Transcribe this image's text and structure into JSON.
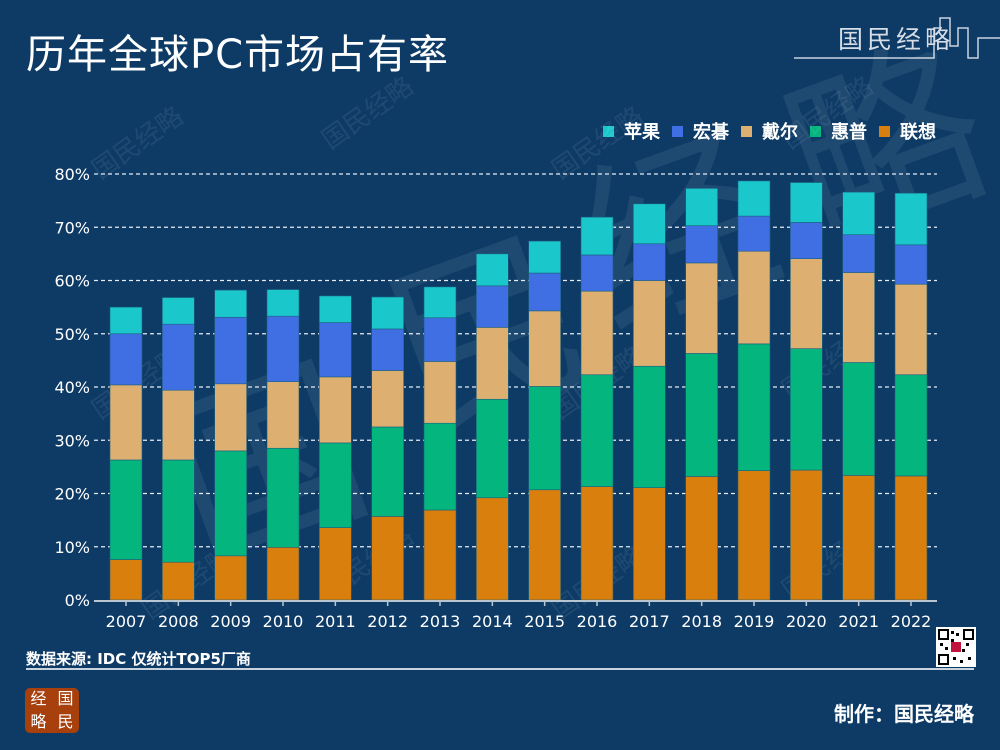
{
  "header": {
    "title": "历年全球PC市场占有率",
    "brand": "国民经略"
  },
  "footer": {
    "source": "数据来源: IDC  仅统计TOP5厂商",
    "credit": "制作：国民经略",
    "logo_chars": [
      "经",
      "国",
      "略",
      "民"
    ],
    "qr_label": "qr-code"
  },
  "watermark_text": "国民经略",
  "chart_data": {
    "type": "bar",
    "stacked": true,
    "title": "历年全球PC市场占有率",
    "xlabel": "",
    "ylabel": "",
    "ylim": [
      0,
      80
    ],
    "yticks": [
      "0%",
      "10%",
      "20%",
      "30%",
      "40%",
      "50%",
      "60%",
      "70%",
      "80%"
    ],
    "grid": true,
    "legend_position": "top-right",
    "categories": [
      "2007",
      "2008",
      "2009",
      "2010",
      "2011",
      "2012",
      "2013",
      "2014",
      "2015",
      "2016",
      "2017",
      "2018",
      "2019",
      "2020",
      "2021",
      "2022"
    ],
    "series": [
      {
        "name": "联想",
        "color": "#d97f0e",
        "values": [
          7.6,
          7.1,
          8.3,
          9.9,
          13.6,
          15.7,
          16.9,
          19.2,
          20.7,
          21.3,
          21.1,
          23.2,
          24.3,
          24.4,
          23.4,
          23.3
        ]
      },
      {
        "name": "惠普",
        "color": "#04b57d",
        "values": [
          18.7,
          19.2,
          19.7,
          18.6,
          15.9,
          16.8,
          16.3,
          18.5,
          19.4,
          21.0,
          22.8,
          23.1,
          23.8,
          22.8,
          21.2,
          19.0
        ]
      },
      {
        "name": "戴尔",
        "color": "#ddb072",
        "values": [
          14.1,
          13.1,
          12.6,
          12.5,
          12.4,
          10.6,
          11.6,
          13.5,
          14.2,
          15.7,
          16.1,
          17.0,
          17.4,
          16.9,
          16.9,
          17.0
        ]
      },
      {
        "name": "宏碁",
        "color": "#3f6fe3",
        "values": [
          9.6,
          12.4,
          12.5,
          12.3,
          10.2,
          7.8,
          8.2,
          7.8,
          7.1,
          6.8,
          6.9,
          7.0,
          6.6,
          6.8,
          7.1,
          7.4
        ]
      },
      {
        "name": "苹果",
        "color": "#1ac8cc",
        "values": [
          5.0,
          5.0,
          5.1,
          5.0,
          5.0,
          6.0,
          5.8,
          6.0,
          6.0,
          7.1,
          7.5,
          7.0,
          6.6,
          7.5,
          8.0,
          9.7
        ]
      }
    ],
    "legend_order": [
      "苹果",
      "宏碁",
      "戴尔",
      "惠普",
      "联想"
    ]
  }
}
